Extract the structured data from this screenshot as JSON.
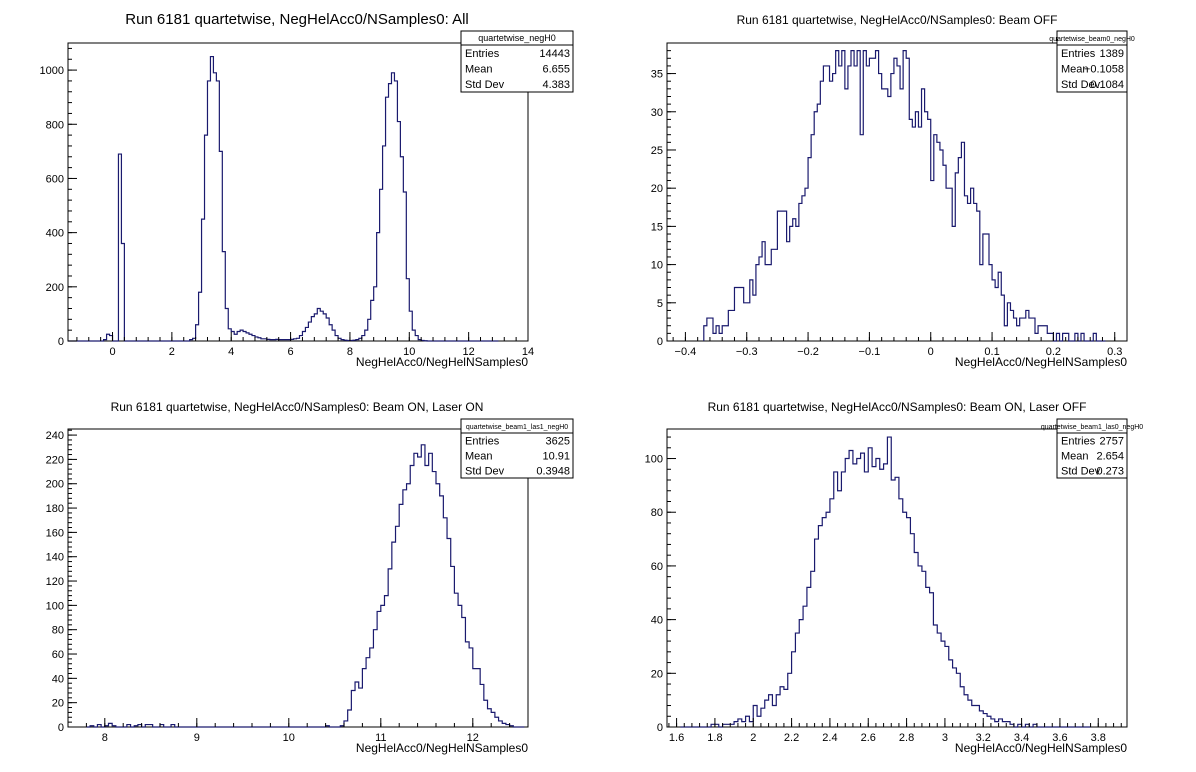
{
  "window": {
    "title": "Run 6181 quartetwise, NegHelAcc0/NSamples0"
  },
  "colors": {
    "histogram": "#1a1a6e",
    "frame": "#000000",
    "background": "#ffffff"
  },
  "chart_data": [
    {
      "type": "histogram",
      "title": "Run 6181 quartetwise, NegHelAcc0/NSamples0: All",
      "xlabel": "NegHelAcc0/NegHelNSamples0",
      "ylabel": "",
      "xlim": [
        -1.5,
        14
      ],
      "ylim": [
        0,
        1100
      ],
      "xticks": [
        0,
        2,
        4,
        6,
        8,
        10,
        12,
        14
      ],
      "yticks": [
        0,
        200,
        400,
        600,
        800,
        1000
      ],
      "grid": false,
      "bins": {
        "start": -1.5,
        "width": 0.1,
        "counts": [
          0,
          0,
          0,
          0,
          0,
          0,
          0,
          0,
          0,
          0,
          0,
          0,
          5,
          25,
          20,
          0,
          0,
          690,
          360,
          0,
          0,
          0,
          0,
          0,
          0,
          0,
          0,
          0,
          0,
          0,
          0,
          0,
          0,
          0,
          0,
          0,
          0,
          0,
          0,
          0,
          0,
          5,
          10,
          60,
          180,
          450,
          760,
          960,
          1050,
          990,
          960,
          700,
          330,
          120,
          45,
          35,
          25,
          35,
          40,
          35,
          30,
          25,
          20,
          15,
          12,
          8,
          8,
          6,
          5,
          5,
          6,
          5,
          5,
          5,
          5,
          6,
          8,
          10,
          20,
          35,
          50,
          70,
          90,
          100,
          120,
          110,
          100,
          85,
          60,
          40,
          20,
          10,
          5,
          3,
          2,
          2,
          3,
          5,
          10,
          20,
          40,
          80,
          150,
          200,
          400,
          560,
          720,
          900,
          950,
          990,
          960,
          810,
          680,
          550,
          230,
          110,
          40,
          20,
          5,
          2,
          1,
          0,
          0,
          0,
          0,
          0,
          0,
          0,
          0,
          0,
          0,
          0,
          0,
          0,
          0,
          0,
          0,
          0,
          0,
          0,
          0,
          0,
          0,
          0,
          0
        ]
      },
      "stats": {
        "name": "quartetwise_negH0",
        "rows": [
          {
            "label": "Entries",
            "value": "14443"
          },
          {
            "label": "Mean",
            "value": "6.655"
          },
          {
            "label": "Std Dev",
            "value": "4.383"
          }
        ]
      }
    },
    {
      "type": "histogram",
      "title": "Run 6181 quartetwise, NegHelAcc0/NSamples0: Beam OFF",
      "xlabel": "NegHelAcc0/NegHelNSamples0",
      "ylabel": "",
      "xlim": [
        -0.43,
        0.32
      ],
      "ylim": [
        0,
        39
      ],
      "xticks": [
        -0.4,
        -0.3,
        -0.2,
        -0.1,
        0,
        0.1,
        0.2,
        0.3
      ],
      "yticks": [
        0,
        5,
        10,
        15,
        20,
        25,
        30,
        35
      ],
      "grid": false,
      "bins": {
        "start": -0.37,
        "width": 0.005,
        "counts": [
          2,
          3,
          3,
          1,
          2,
          1,
          2,
          2,
          4,
          4,
          7,
          7,
          7,
          5,
          5,
          8,
          6,
          10,
          11,
          13,
          10,
          10,
          12,
          12,
          17,
          17,
          17,
          13,
          15,
          16,
          15,
          18,
          19,
          20,
          24,
          27,
          30,
          31,
          34,
          36,
          36,
          34,
          35,
          38,
          36,
          38,
          33,
          36,
          38,
          36,
          38,
          27,
          38,
          36,
          37,
          37,
          38,
          35,
          33,
          33,
          32,
          35,
          37,
          36,
          33,
          38,
          37,
          29,
          28,
          30,
          28,
          33,
          30,
          29,
          21,
          27,
          26,
          25,
          23,
          20,
          20,
          15,
          22,
          24,
          26,
          19,
          18,
          20,
          18,
          17,
          10,
          14,
          14,
          10,
          8,
          7,
          9,
          6,
          2,
          5,
          4,
          3,
          2,
          3,
          3,
          4,
          3,
          3,
          1,
          2,
          2,
          2,
          1,
          1,
          0,
          1,
          0,
          1,
          1,
          0,
          0,
          1,
          0,
          1,
          0,
          0,
          0,
          1,
          0,
          0,
          0
        ]
      },
      "stats": {
        "name": "quartetwise_beam0_negH0",
        "rows": [
          {
            "label": "Entries",
            "value": "1389"
          },
          {
            "label": "Mean",
            "value": "−0.1058"
          },
          {
            "label": "Std Dev",
            "value": "0.1084"
          }
        ]
      }
    },
    {
      "type": "histogram",
      "title": "Run 6181 quartetwise, NegHelAcc0/NSamples0: Beam ON, Laser ON",
      "xlabel": "NegHelAcc0/NegHelNSamples0",
      "ylabel": "",
      "xlim": [
        7.6,
        12.6
      ],
      "ylim": [
        0,
        245
      ],
      "xticks": [
        8,
        9,
        10,
        11,
        12
      ],
      "yticks": [
        0,
        20,
        40,
        60,
        80,
        100,
        120,
        140,
        160,
        180,
        200,
        220,
        240
      ],
      "grid": false,
      "bins": {
        "start": 7.8,
        "width": 0.04,
        "counts": [
          0,
          1,
          0,
          2,
          0,
          1,
          3,
          1,
          0,
          0,
          0,
          2,
          0,
          1,
          2,
          0,
          2,
          2,
          0,
          0,
          2,
          0,
          0,
          2,
          0,
          0,
          0,
          0,
          0,
          0,
          0,
          0,
          0,
          0,
          0,
          0,
          0,
          0,
          0,
          0,
          0,
          0,
          0,
          0,
          0,
          0,
          0,
          0,
          0,
          0,
          0,
          0,
          0,
          0,
          0,
          0,
          0,
          0,
          0,
          0,
          0,
          0,
          0,
          0,
          0,
          1,
          0,
          0,
          0,
          1,
          5,
          14,
          30,
          37,
          32,
          48,
          57,
          65,
          80,
          95,
          100,
          108,
          130,
          152,
          165,
          183,
          195,
          200,
          215,
          225,
          222,
          232,
          215,
          225,
          210,
          200,
          190,
          172,
          155,
          132,
          110,
          100,
          90,
          70,
          65,
          48,
          48,
          35,
          22,
          15,
          12,
          8,
          5,
          3,
          2,
          1,
          0,
          0,
          0
        ]
      },
      "stats": {
        "name": "quartetwise_beam1_las1_negH0",
        "rows": [
          {
            "label": "Entries",
            "value": "3625"
          },
          {
            "label": "Mean",
            "value": "10.91"
          },
          {
            "label": "Std Dev",
            "value": "0.3948"
          }
        ]
      }
    },
    {
      "type": "histogram",
      "title": "Run 6181 quartetwise, NegHelAcc0/NSamples0: Beam ON, Laser OFF",
      "xlabel": "NegHelAcc0/NegHelNSamples0",
      "ylabel": "",
      "xlim": [
        1.55,
        3.95
      ],
      "ylim": [
        0,
        111
      ],
      "xticks": [
        1.6,
        1.8,
        2,
        2.2,
        2.4,
        2.6,
        2.8,
        3,
        3.2,
        3.4,
        3.6,
        3.8
      ],
      "yticks": [
        0,
        20,
        40,
        60,
        80,
        100
      ],
      "grid": false,
      "bins": {
        "start": 1.62,
        "width": 0.02,
        "counts": [
          0,
          0,
          0,
          0,
          0,
          0,
          0,
          0,
          1,
          1,
          0,
          1,
          1,
          1,
          2,
          3,
          2,
          4,
          2,
          8,
          4,
          7,
          10,
          12,
          8,
          12,
          15,
          14,
          20,
          28,
          35,
          40,
          45,
          52,
          58,
          70,
          75,
          78,
          80,
          85,
          95,
          88,
          95,
          100,
          103,
          98,
          100,
          102,
          95,
          104,
          97,
          100,
          96,
          98,
          108,
          92,
          93,
          85,
          80,
          78,
          72,
          65,
          60,
          58,
          52,
          50,
          38,
          35,
          32,
          30,
          25,
          22,
          20,
          15,
          12,
          10,
          8,
          8,
          6,
          5,
          4,
          3,
          2,
          3,
          2,
          2,
          1,
          0,
          1,
          0,
          1,
          0,
          1,
          0,
          0,
          0,
          0,
          0,
          0,
          0,
          0,
          0,
          0,
          0,
          0,
          0,
          0
        ]
      },
      "stats": {
        "name": "quartetwise_beam1_las0_negH0",
        "rows": [
          {
            "label": "Entries",
            "value": "2757"
          },
          {
            "label": "Mean",
            "value": "2.654"
          },
          {
            "label": "Std Dev",
            "value": "0.273"
          }
        ]
      }
    }
  ]
}
